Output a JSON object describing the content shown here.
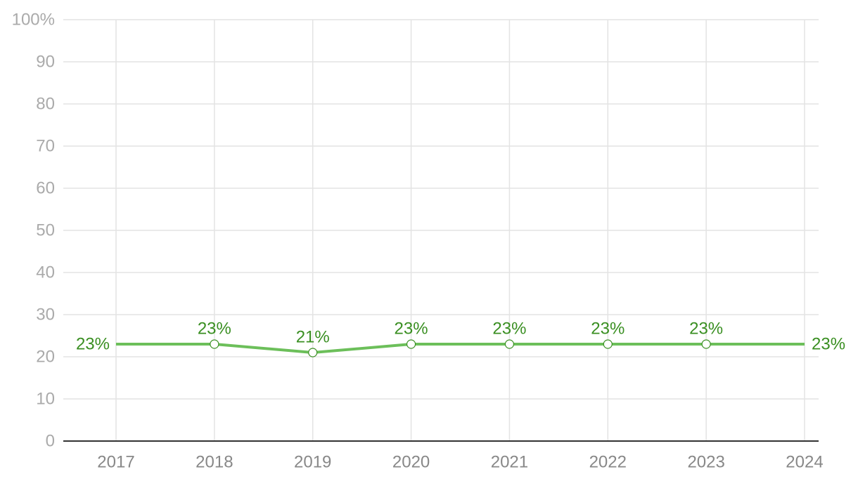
{
  "chart_data": {
    "type": "line",
    "title": "",
    "xlabel": "",
    "ylabel": "",
    "categories": [
      "2017",
      "2018",
      "2019",
      "2020",
      "2021",
      "2022",
      "2023",
      "2024"
    ],
    "series": [
      {
        "values": [
          23,
          23,
          21,
          23,
          23,
          23,
          23,
          23
        ],
        "labels": [
          "23%",
          "23%",
          "21%",
          "23%",
          "23%",
          "23%",
          "23%",
          "23%"
        ],
        "color": "#6cbf5a",
        "label_color": "#3a8f22"
      }
    ],
    "ylim": [
      0,
      100
    ],
    "yticks": [
      "0",
      "10",
      "20",
      "30",
      "40",
      "50",
      "60",
      "70",
      "80",
      "90",
      "100%"
    ],
    "grid": true,
    "legend": "none"
  }
}
